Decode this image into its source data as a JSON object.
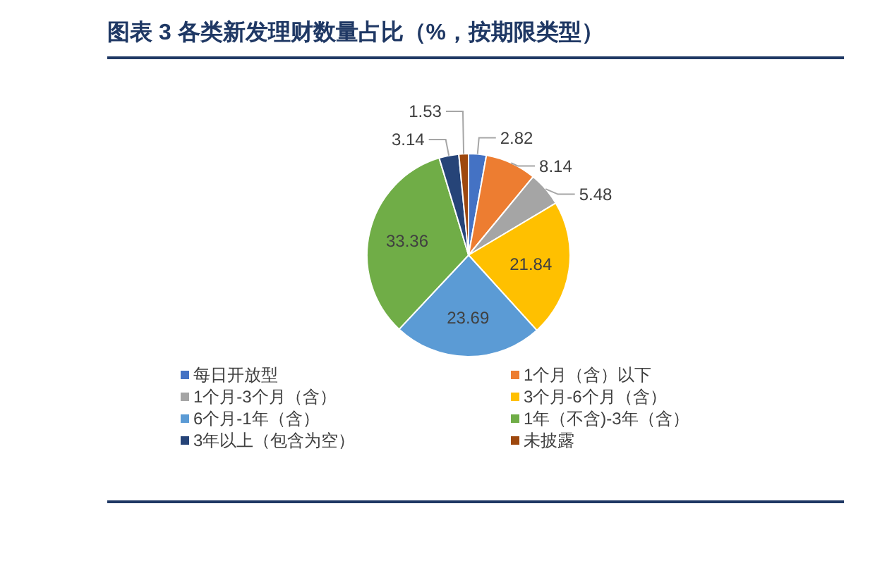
{
  "chart_data": {
    "type": "pie",
    "title": "图表 3   各类新发理财数量占比（%，按期限类型）",
    "categories": [
      "每日开放型",
      "1个月（含）以下",
      "1个月-3个月（含）",
      "3个月-6个月（含）",
      "6个月-1年（含）",
      "1年（不含)-3年（含）",
      "3年以上（包含为空）",
      "未披露"
    ],
    "values": [
      2.82,
      8.14,
      5.48,
      21.84,
      23.69,
      33.36,
      3.14,
      1.53
    ],
    "colors": [
      "#4472c4",
      "#ed7d31",
      "#a5a5a5",
      "#ffc000",
      "#5b9bd5",
      "#70ad47",
      "#264478",
      "#9e480e"
    ],
    "data_labels": true,
    "legend": "bottom"
  }
}
